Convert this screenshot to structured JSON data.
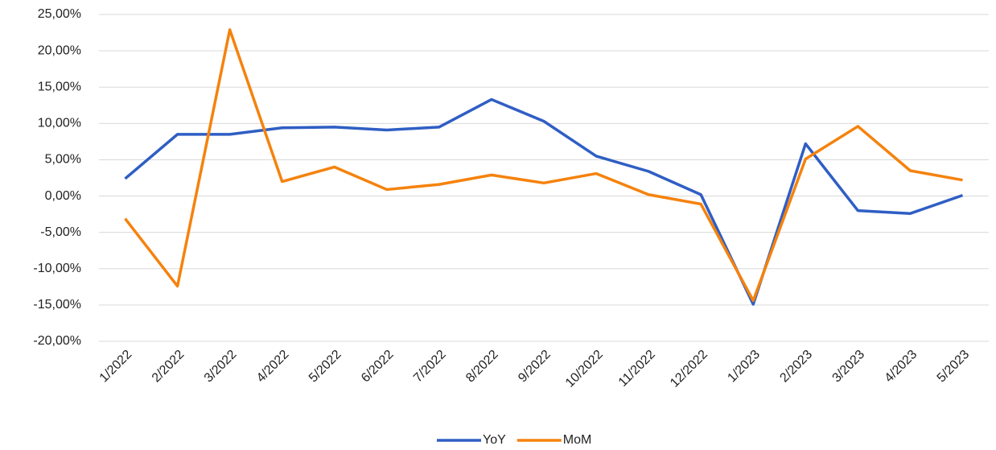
{
  "chart_data": {
    "type": "line",
    "categories": [
      "1/2022",
      "2/2022",
      "3/2022",
      "4/2022",
      "5/2022",
      "6/2022",
      "7/2022",
      "8/2022",
      "9/2022",
      "10/2022",
      "11/2022",
      "12/2022",
      "1/2023",
      "2/2023",
      "3/2023",
      "4/2023",
      "5/2023"
    ],
    "series": [
      {
        "name": "YoY",
        "color": "#2f5ec4",
        "values": [
          2.4,
          8.5,
          8.5,
          9.4,
          9.5,
          9.1,
          9.5,
          13.3,
          10.3,
          5.5,
          3.4,
          0.2,
          -14.9,
          7.2,
          -2.0,
          -2.4,
          0.1
        ]
      },
      {
        "name": "MoM",
        "color": "#f5820d",
        "values": [
          -3.1,
          -12.4,
          22.9,
          2.0,
          4.0,
          0.9,
          1.6,
          2.9,
          1.8,
          3.1,
          0.2,
          -1.1,
          -14.4,
          5.1,
          9.6,
          3.5,
          2.2
        ]
      }
    ],
    "ylim": [
      -20,
      25
    ],
    "yticks": [
      {
        "value": 25,
        "label": "25,00%"
      },
      {
        "value": 20,
        "label": "20,00%"
      },
      {
        "value": 15,
        "label": "15,00%"
      },
      {
        "value": 10,
        "label": "10,00%"
      },
      {
        "value": 5,
        "label": "5,00%"
      },
      {
        "value": 0,
        "label": "0,00%"
      },
      {
        "value": -5,
        "label": "-5,00%"
      },
      {
        "value": -10,
        "label": "-10,00%"
      },
      {
        "value": -15,
        "label": "-15,00%"
      },
      {
        "value": -20,
        "label": "-20,00%"
      }
    ],
    "grid": true,
    "legend": "bottom"
  }
}
